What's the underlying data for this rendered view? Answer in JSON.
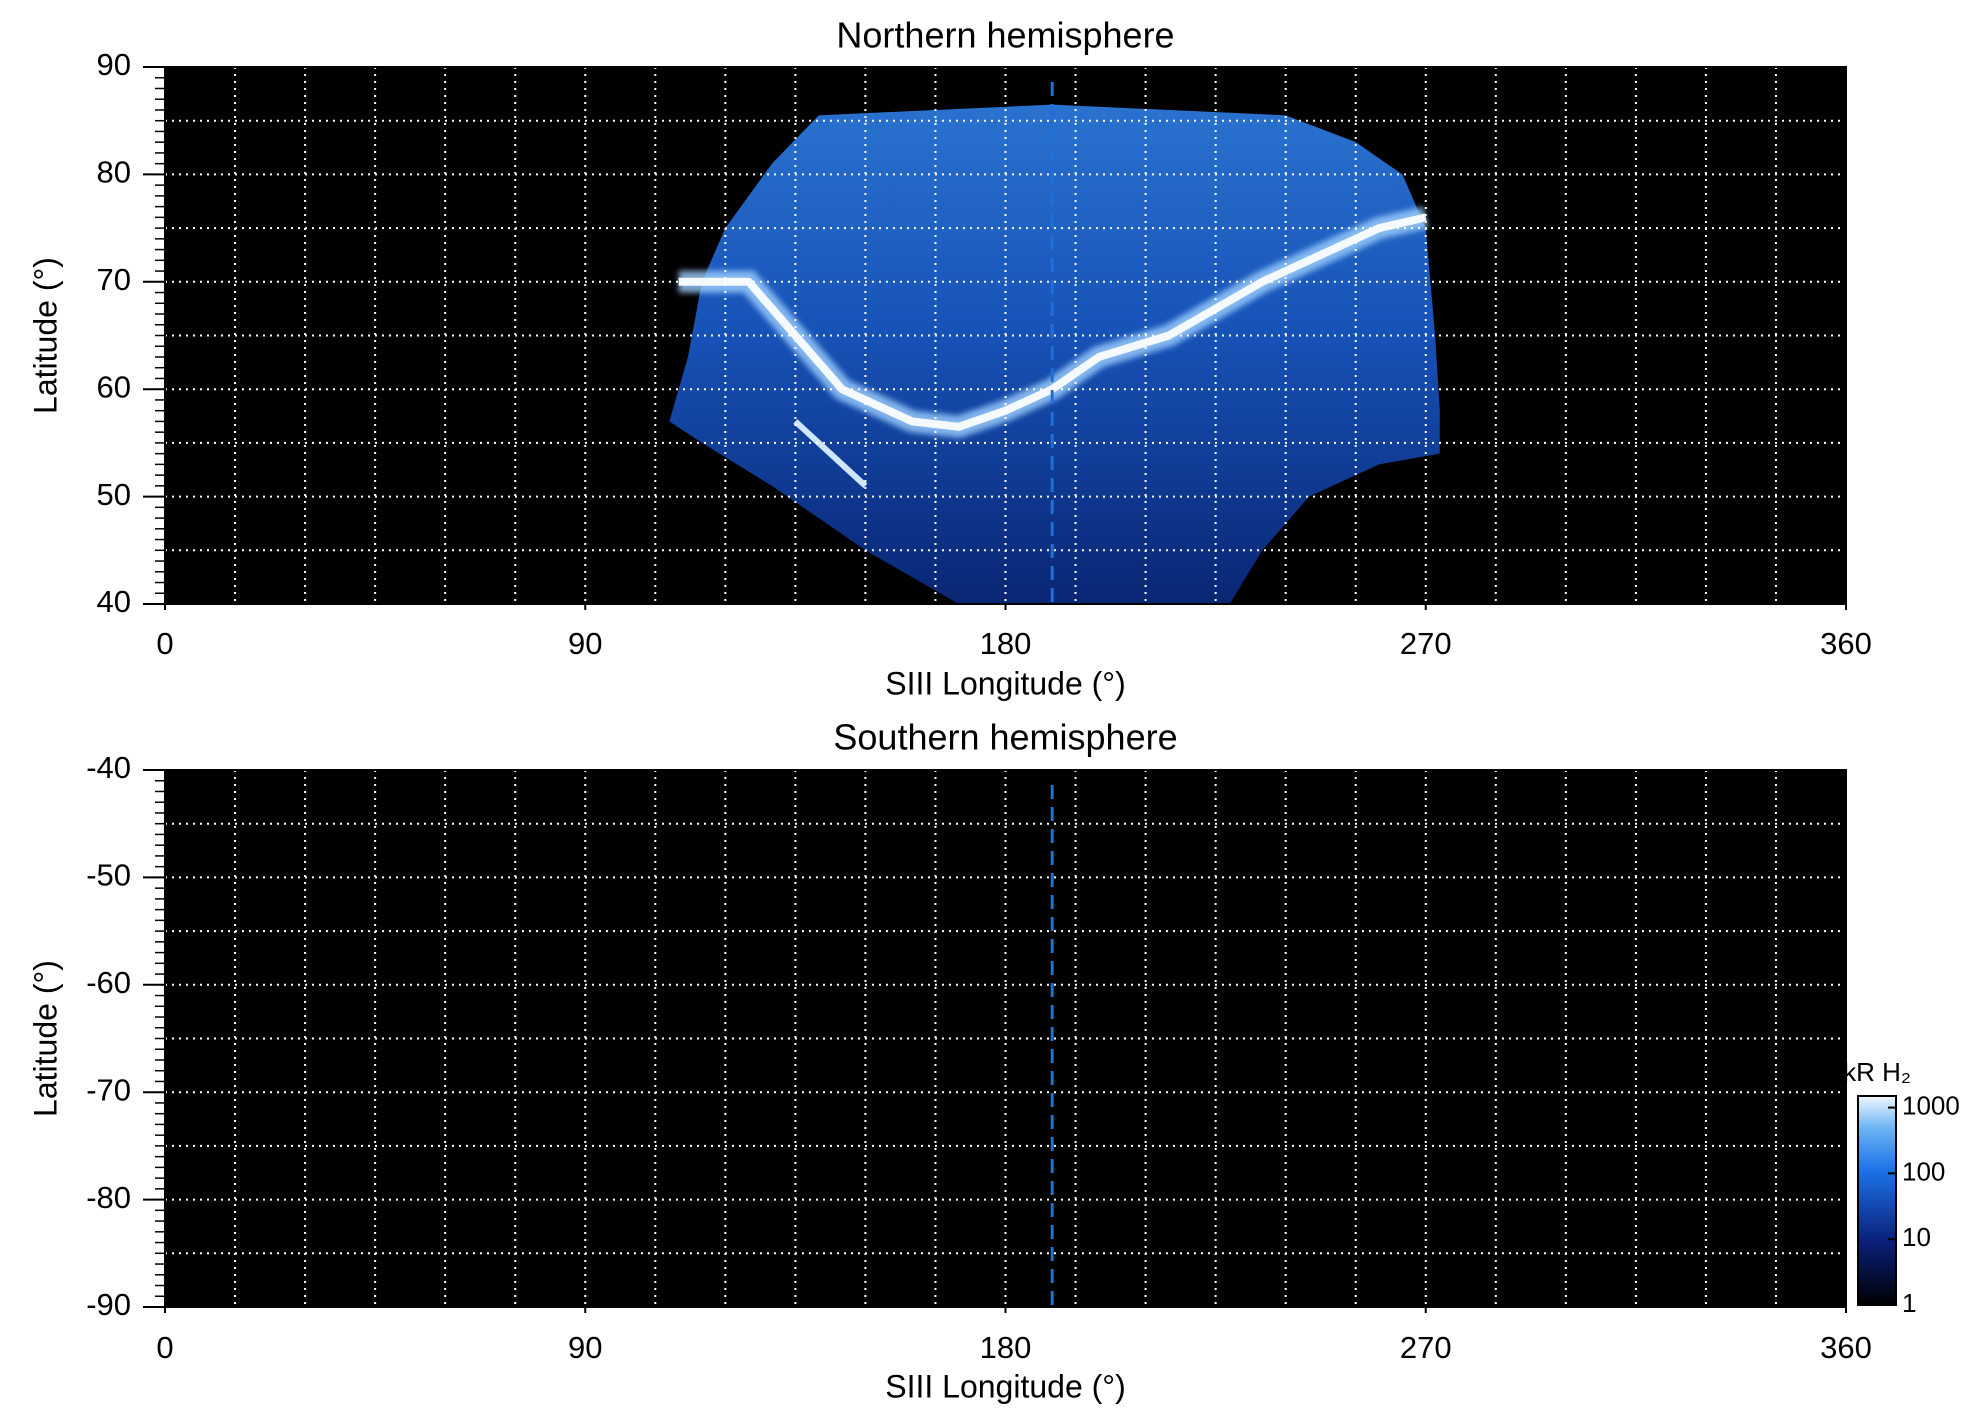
{
  "chart_data": [
    {
      "type": "heatmap",
      "title": "Northern hemisphere",
      "x_label": "SIII Longitude (°)",
      "y_label": "Latitude (°)",
      "xlim": [
        0,
        360
      ],
      "xticks": [
        0,
        90,
        180,
        270,
        360
      ],
      "ylim": [
        40,
        90
      ],
      "yticks": [
        40,
        50,
        60,
        70,
        80,
        90
      ],
      "grid": true,
      "grid_xstep": 15,
      "grid_ystep": 5,
      "yminor_step": 1,
      "reference_line_x": 190,
      "reference_color": "#1f6fd6"
    },
    {
      "type": "heatmap",
      "title": "Southern hemisphere",
      "x_label": "SIII Longitude (°)",
      "y_label": "Latitude (°)",
      "xlim": [
        0,
        360
      ],
      "xticks": [
        0,
        90,
        180,
        270,
        360
      ],
      "ylim": [
        -90,
        -40
      ],
      "yticks": [
        -90,
        -80,
        -70,
        -60,
        -50,
        -40
      ],
      "grid": true,
      "grid_xstep": 15,
      "grid_ystep": 5,
      "yminor_step": 1,
      "reference_line_x": 190,
      "reference_color": "#1f6fd6",
      "colorbar": {
        "label": "kR H₂",
        "log": true,
        "lim": [
          1,
          1500
        ],
        "ticks": [
          1,
          10,
          100,
          1000
        ]
      }
    }
  ]
}
